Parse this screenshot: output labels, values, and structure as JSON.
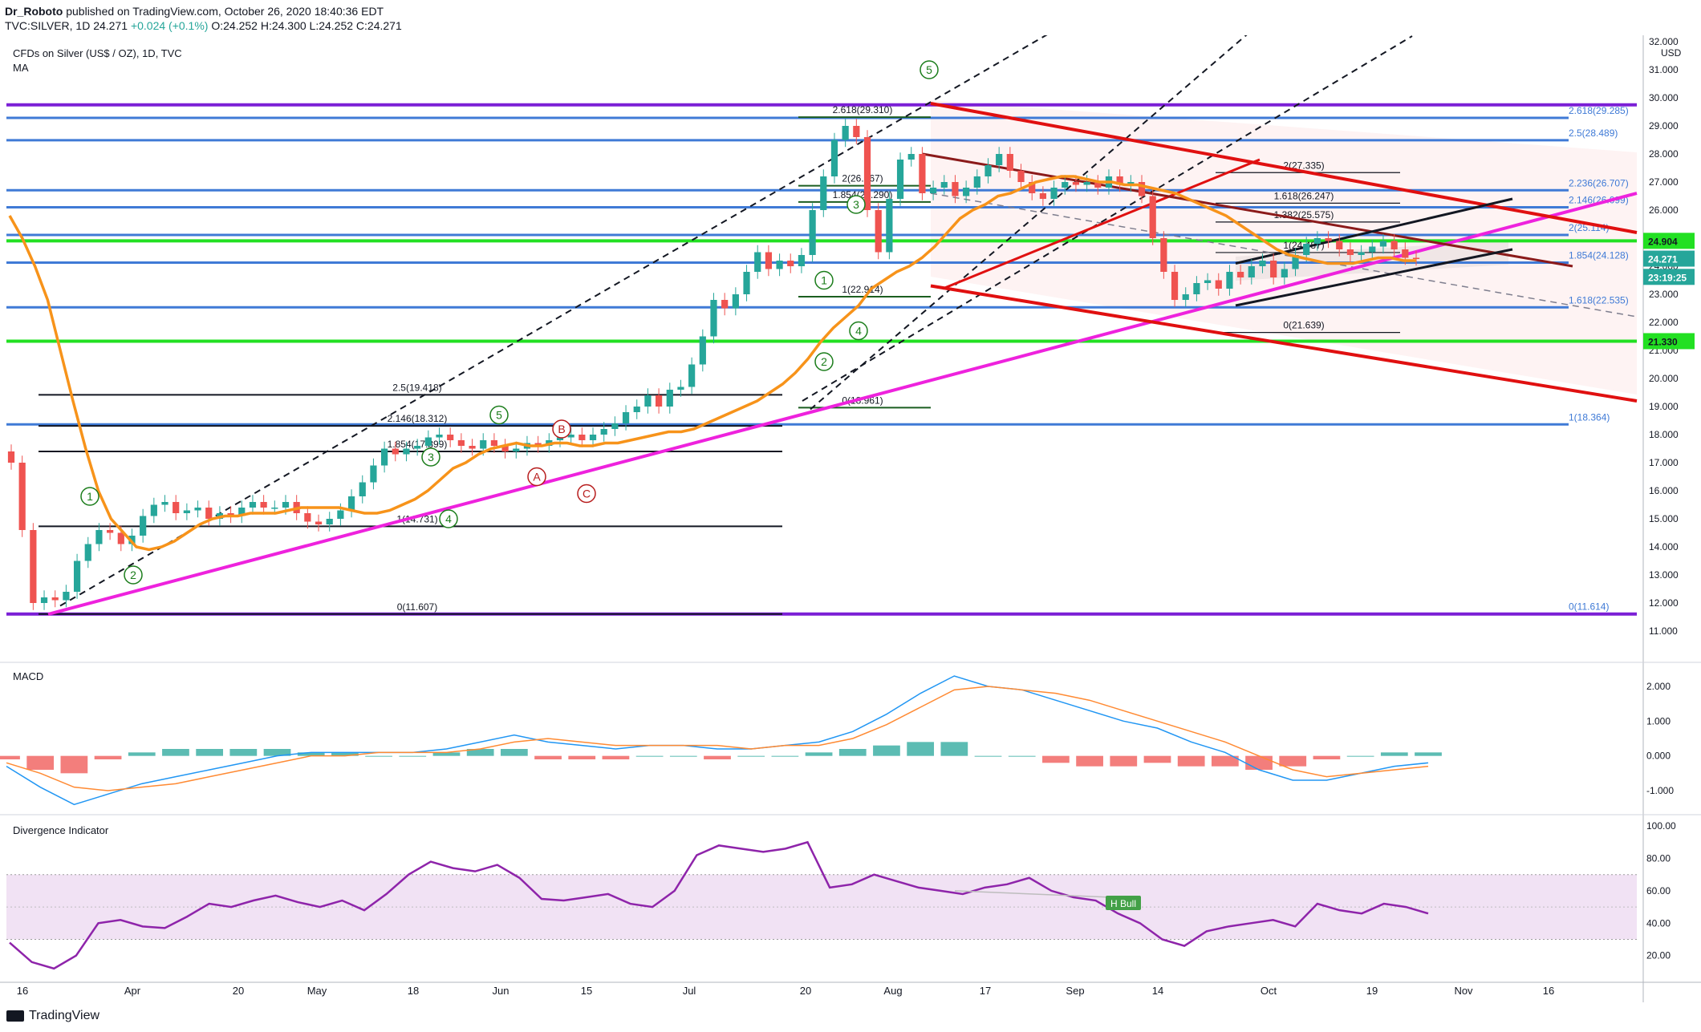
{
  "header": {
    "author": "Dr_Roboto",
    "published": "published on TradingView.com, October 26, 2020 18:40:36 EDT",
    "symbol": "TVC:SILVER, 1D",
    "last": "24.271",
    "change": "+0.024 (+0.1%)",
    "ohlc": "O:24.252 H:24.300 L:24.252 C:24.271"
  },
  "legend": {
    "title": "CFDs on Silver (US$ / OZ), 1D, TVC",
    "ma": "MA",
    "macd": "MACD",
    "divergence": "Divergence Indicator",
    "currency": "USD"
  },
  "footer": {
    "brand": "TradingView"
  },
  "colors": {
    "up": "#26a69a",
    "down": "#ef5350",
    "ma": "#f7931a",
    "purple": "#7b1fd6",
    "blue": "#3f7ad6",
    "green": "#22e022",
    "red": "#e01010",
    "magenta": "#ee22dd",
    "macd_line": "#2196f3",
    "signal_line": "#ff8a33",
    "div_line": "#8e24aa"
  },
  "chart_data": [
    {
      "type": "candlestick",
      "title": "CFDs on Silver (US$ / OZ), 1D, TVC",
      "x_labels": [
        "16",
        "Apr",
        "20",
        "May",
        "18",
        "Jun",
        "15",
        "Jul",
        "20",
        "Aug",
        "17",
        "Sep",
        "14",
        "Oct",
        "19",
        "Nov",
        "16"
      ],
      "ylim": [
        10,
        32
      ],
      "y_ticks": [
        "11.000",
        "12.000",
        "13.000",
        "14.000",
        "15.000",
        "16.000",
        "17.000",
        "18.000",
        "19.000",
        "20.000",
        "21.000",
        "22.000",
        "23.000",
        "24.000",
        "25.000",
        "26.000",
        "27.000",
        "28.000",
        "29.000",
        "30.000",
        "31.000",
        "32.000"
      ],
      "close_path": [
        17.0,
        14.6,
        12.0,
        12.2,
        12.1,
        12.4,
        13.5,
        14.1,
        14.6,
        14.5,
        14.1,
        14.4,
        15.1,
        15.5,
        15.6,
        15.2,
        15.3,
        15.4,
        15.0,
        15.2,
        15.1,
        15.4,
        15.6,
        15.4,
        15.4,
        15.6,
        15.2,
        14.9,
        14.8,
        15.0,
        15.3,
        15.8,
        16.3,
        16.9,
        17.5,
        17.3,
        17.5,
        17.6,
        17.9,
        18.0,
        17.8,
        17.6,
        17.5,
        17.8,
        17.6,
        17.4,
        17.5,
        17.7,
        17.6,
        17.8,
        17.9,
        18.0,
        17.8,
        18.0,
        18.2,
        18.4,
        18.8,
        19.0,
        19.4,
        19.0,
        19.6,
        19.7,
        20.5,
        21.5,
        22.8,
        22.5,
        23.0,
        23.8,
        24.5,
        23.9,
        24.2,
        24.0,
        24.4,
        26.0,
        27.2,
        28.5,
        29.0,
        28.6,
        26.0,
        24.5,
        26.4,
        27.8,
        28.0,
        26.6,
        26.8,
        27.0,
        26.5,
        26.8,
        27.2,
        27.6,
        28.0,
        27.4,
        27.0,
        26.6,
        26.4,
        26.8,
        27.0,
        26.9,
        27.0,
        26.8,
        27.2,
        26.9,
        27.0,
        26.5,
        25.0,
        23.8,
        22.8,
        23.0,
        23.4,
        23.5,
        23.2,
        23.8,
        23.6,
        24.0,
        24.2,
        23.6,
        23.9,
        24.4,
        24.8,
        25.0,
        24.9,
        24.6,
        24.4,
        24.5,
        24.7,
        24.9,
        24.6,
        24.3,
        24.27
      ],
      "ma_path": [
        25.8,
        25.0,
        24.0,
        22.8,
        21.0,
        19.2,
        17.5,
        16.0,
        15.0,
        14.5,
        14.0,
        13.9,
        14.0,
        14.2,
        14.5,
        14.8,
        15.0,
        15.1,
        15.1,
        15.2,
        15.2,
        15.2,
        15.3,
        15.4,
        15.4,
        15.4,
        15.4,
        15.3,
        15.2,
        15.2,
        15.3,
        15.5,
        15.7,
        16.0,
        16.4,
        16.8,
        17.0,
        17.3,
        17.5,
        17.6,
        17.7,
        17.6,
        17.6,
        17.7,
        17.7,
        17.6,
        17.6,
        17.7,
        17.7,
        17.8,
        17.9,
        18.0,
        18.1,
        18.1,
        18.2,
        18.4,
        18.6,
        18.8,
        19.0,
        19.2,
        19.5,
        19.8,
        20.2,
        20.7,
        21.3,
        21.8,
        22.2,
        22.6,
        23.2,
        23.5,
        23.8,
        24.0,
        24.3,
        24.7,
        25.2,
        25.7,
        26.0,
        26.2,
        26.5,
        26.6,
        26.8,
        27.0,
        27.1,
        27.2,
        27.2,
        27.1,
        27.0,
        27.0,
        26.9,
        26.9,
        26.8,
        26.7,
        26.6,
        26.4,
        26.2,
        26.0,
        25.8,
        25.5,
        25.2,
        24.9,
        24.6,
        24.4,
        24.3,
        24.2,
        24.1,
        24.1,
        24.1,
        24.2,
        24.3,
        24.3,
        24.2,
        24.2
      ],
      "horizontal_levels_left": [
        {
          "label": "2.5(19.418)",
          "value": 19.418
        },
        {
          "label": "2.146(18.312)",
          "value": 18.312
        },
        {
          "label": "1.854(17.399)",
          "value": 17.399
        },
        {
          "label": "1(14.731)",
          "value": 14.731
        },
        {
          "label": "0(11.607)",
          "value": 11.607
        }
      ],
      "horizontal_levels_mid": [
        {
          "label": "2.618(29.310)",
          "value": 29.31
        },
        {
          "label": "2(26.867)",
          "value": 26.867
        },
        {
          "label": "1.854(26.290)",
          "value": 26.29
        },
        {
          "label": "1(22.914)",
          "value": 22.914
        },
        {
          "label": "0(18.961)",
          "value": 18.961
        }
      ],
      "horizontal_levels_right": [
        {
          "label": "2(27.335)",
          "value": 27.335
        },
        {
          "label": "1.618(26.247)",
          "value": 26.247
        },
        {
          "label": "1.382(25.575)",
          "value": 25.575
        },
        {
          "label": "1(24.487)",
          "value": 24.487
        },
        {
          "label": "0(21.639)",
          "value": 21.639
        }
      ],
      "blue_levels": [
        {
          "label": "2.618(29.285)",
          "value": 29.285
        },
        {
          "label": "2.5(28.489)",
          "value": 28.489
        },
        {
          "label": "2.236(26.707)",
          "value": 26.707
        },
        {
          "label": "2.146(26.099)",
          "value": 26.099
        },
        {
          "label": "2(25.114)",
          "value": 25.114
        },
        {
          "label": "1.854(24.128)",
          "value": 24.128
        },
        {
          "label": "1.618(22.535)",
          "value": 22.535
        },
        {
          "label": "1(18.364)",
          "value": 18.364
        },
        {
          "label": "0(11.614)",
          "value": 11.614
        }
      ],
      "price_badges": [
        {
          "label": "24.904",
          "value": 24.904,
          "color": "#22e022"
        },
        {
          "label": "24.271",
          "value": 24.271,
          "color": "#26a69a"
        },
        {
          "label": "23:19:25",
          "value": 23.62,
          "color": "#26a69a"
        },
        {
          "label": "21.330",
          "value": 21.33,
          "color": "#22e022"
        }
      ],
      "wave_labels_green": [
        "1",
        "2",
        "3",
        "4",
        "5"
      ],
      "wave_labels_red": [
        "A",
        "B",
        "C"
      ],
      "wave_labels_aug": [
        "1",
        "2",
        "3",
        "4",
        "5"
      ]
    },
    {
      "type": "line",
      "title": "MACD",
      "ylim": [
        -1.6,
        2.6
      ],
      "y_ticks": [
        "-1.000",
        "0.000",
        "1.000",
        "2.000"
      ],
      "series": [
        {
          "name": "macd",
          "values": [
            -0.3,
            -0.9,
            -1.4,
            -1.1,
            -0.8,
            -0.6,
            -0.4,
            -0.2,
            0.0,
            0.1,
            0.1,
            0.1,
            0.1,
            0.2,
            0.4,
            0.6,
            0.4,
            0.3,
            0.2,
            0.3,
            0.3,
            0.2,
            0.2,
            0.3,
            0.4,
            0.7,
            1.2,
            1.8,
            2.3,
            2.0,
            1.9,
            1.6,
            1.3,
            1.0,
            0.8,
            0.4,
            0.1,
            -0.4,
            -0.7,
            -0.7,
            -0.5,
            -0.3,
            -0.2
          ]
        },
        {
          "name": "signal",
          "values": [
            -0.2,
            -0.5,
            -0.9,
            -1.0,
            -0.9,
            -0.8,
            -0.6,
            -0.4,
            -0.2,
            0.0,
            0.0,
            0.1,
            0.1,
            0.1,
            0.2,
            0.4,
            0.5,
            0.4,
            0.3,
            0.3,
            0.3,
            0.3,
            0.2,
            0.3,
            0.3,
            0.5,
            0.9,
            1.4,
            1.9,
            2.0,
            1.9,
            1.8,
            1.6,
            1.3,
            1.0,
            0.7,
            0.4,
            0.0,
            -0.4,
            -0.6,
            -0.5,
            -0.4,
            -0.3
          ]
        },
        {
          "name": "histogram",
          "values": [
            -0.1,
            -0.4,
            -0.5,
            -0.1,
            0.1,
            0.2,
            0.2,
            0.2,
            0.2,
            0.1,
            0.1,
            0.0,
            0.0,
            0.1,
            0.2,
            0.2,
            -0.1,
            -0.1,
            -0.1,
            0.0,
            0.0,
            -0.1,
            0.0,
            0.0,
            0.1,
            0.2,
            0.3,
            0.4,
            0.4,
            0.0,
            0.0,
            -0.2,
            -0.3,
            -0.3,
            -0.2,
            -0.3,
            -0.3,
            -0.4,
            -0.3,
            -0.1,
            0.0,
            0.1,
            0.1
          ]
        }
      ]
    },
    {
      "type": "line",
      "title": "Divergence Indicator",
      "ylim": [
        5,
        105
      ],
      "y_ticks": [
        "20.00",
        "40.00",
        "60.00",
        "80.00",
        "100.00"
      ],
      "band": [
        30,
        70
      ],
      "annotation": "H Bull",
      "series": [
        {
          "name": "rsi",
          "values": [
            28,
            16,
            12,
            20,
            40,
            42,
            38,
            37,
            44,
            52,
            50,
            54,
            57,
            53,
            50,
            54,
            48,
            58,
            70,
            78,
            74,
            72,
            76,
            68,
            55,
            54,
            56,
            58,
            52,
            50,
            60,
            82,
            88,
            86,
            84,
            86,
            90,
            62,
            64,
            70,
            66,
            62,
            60,
            58,
            62,
            64,
            68,
            60,
            56,
            54,
            46,
            40,
            30,
            26,
            35,
            38,
            40,
            42,
            38,
            52,
            48,
            46,
            52,
            50,
            46
          ]
        }
      ]
    }
  ]
}
